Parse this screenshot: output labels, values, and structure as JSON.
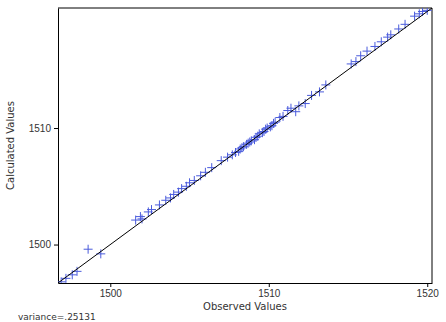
{
  "chart_data": {
    "type": "scatter",
    "x_label": "Observed Values",
    "y_label": "Calculated Values",
    "annotations": [
      "variance=.25131"
    ],
    "xlim": [
      1496.7,
      1520.3
    ],
    "ylim": [
      1496.7,
      1520.3
    ],
    "xticks": [
      1500,
      1510,
      1520
    ],
    "yticks": [
      1500,
      1510
    ],
    "grid": false,
    "series": [
      {
        "type": "scatter",
        "marker": "plus",
        "color": "#4a5bdc",
        "x": [
          1496.9,
          1497.2,
          1497.6,
          1497.9,
          1498.6,
          1499.4,
          1501.6,
          1501.9,
          1502.0,
          1502.4,
          1502.6,
          1503.1,
          1503.5,
          1503.8,
          1504.0,
          1504.3,
          1504.5,
          1504.8,
          1505.0,
          1505.3,
          1505.7,
          1506.0,
          1506.4,
          1507.0,
          1507.4,
          1507.7,
          1507.9,
          1508.1,
          1508.2,
          1508.3,
          1508.4,
          1508.6,
          1508.7,
          1508.8,
          1508.9,
          1509.1,
          1509.2,
          1509.3,
          1509.4,
          1509.6,
          1509.7,
          1509.8,
          1509.9,
          1510.1,
          1510.2,
          1510.3,
          1510.4,
          1510.7,
          1510.9,
          1511.2,
          1511.4,
          1511.7,
          1511.9,
          1512.3,
          1512.7,
          1513.2,
          1513.6,
          1515.2,
          1515.5,
          1515.8,
          1516.2,
          1516.7,
          1517.1,
          1517.5,
          1517.7,
          1518.2,
          1518.6,
          1519.2,
          1519.5,
          1519.7,
          1520.0
        ],
        "values": [
          1496.8,
          1497.1,
          1497.4,
          1497.7,
          1499.6,
          1499.2,
          1502.1,
          1502.4,
          1502.2,
          1502.8,
          1503.0,
          1503.4,
          1503.8,
          1504.0,
          1504.3,
          1504.5,
          1504.8,
          1505.0,
          1505.3,
          1505.5,
          1505.9,
          1506.2,
          1506.6,
          1507.2,
          1507.5,
          1507.7,
          1507.9,
          1508.0,
          1508.2,
          1508.3,
          1508.4,
          1508.6,
          1508.7,
          1508.8,
          1508.9,
          1509.0,
          1509.2,
          1509.3,
          1509.5,
          1509.6,
          1509.7,
          1509.9,
          1510.0,
          1510.1,
          1510.2,
          1510.4,
          1510.5,
          1510.9,
          1511.0,
          1511.5,
          1511.7,
          1511.4,
          1511.9,
          1512.1,
          1512.8,
          1513.1,
          1513.7,
          1515.5,
          1515.7,
          1516.2,
          1516.6,
          1517.0,
          1517.4,
          1517.8,
          1518.0,
          1518.5,
          1518.9,
          1519.6,
          1519.8,
          1520.0,
          1520.1
        ]
      },
      {
        "type": "line",
        "line_style": "solid",
        "color": "#000000",
        "x": [
          1496.7,
          1520.3
        ],
        "values": [
          1496.7,
          1520.3
        ]
      }
    ]
  }
}
